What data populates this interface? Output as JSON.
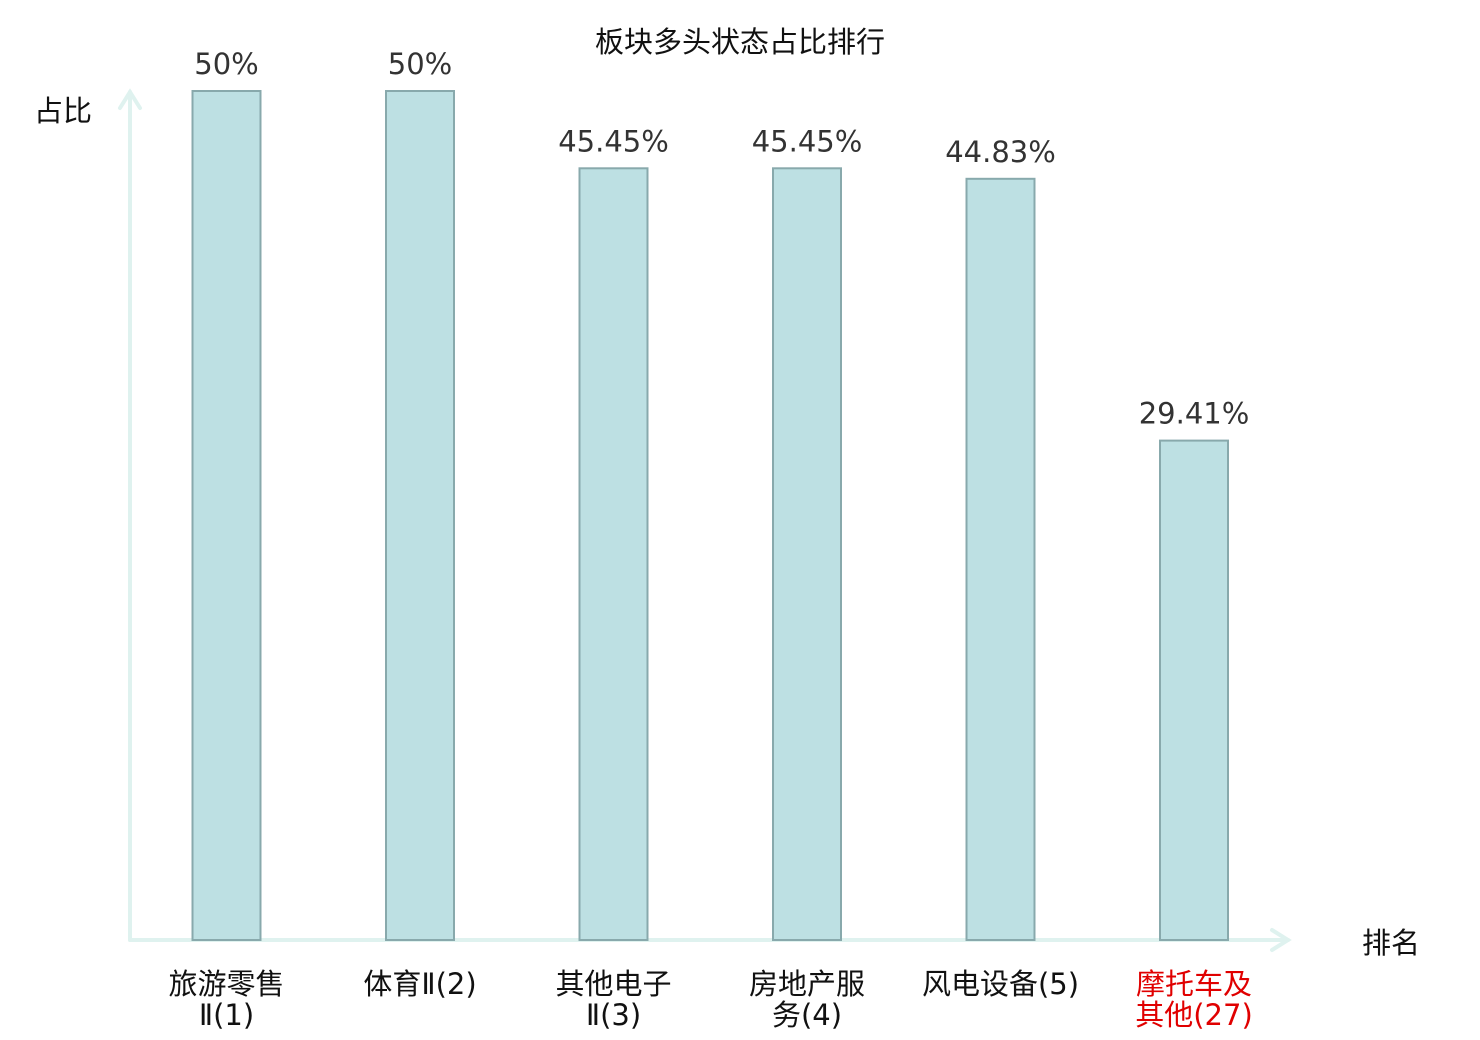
{
  "chart_data": {
    "type": "bar",
    "title": "板块多头状态占比排行",
    "xlabel": "排名",
    "ylabel": "占比",
    "ylim": [
      0,
      55
    ],
    "grid": false,
    "legend": "none",
    "categories": [
      [
        "旅游零售",
        "Ⅱ(1)"
      ],
      [
        "体育Ⅱ(2)"
      ],
      [
        "其他电子",
        "Ⅱ(3)"
      ],
      [
        "房地产服",
        "务(4)"
      ],
      [
        "风电设备(5)"
      ],
      [
        "摩托车及",
        "其他(27)"
      ]
    ],
    "values": [
      50,
      50,
      45.45,
      45.45,
      44.83,
      29.41
    ],
    "value_labels": [
      "50%",
      "50%",
      "45.45%",
      "45.45%",
      "44.83%",
      "29.41%"
    ],
    "highlight_index": 5,
    "colors": {
      "bar_fill": "#bde0e3",
      "bar_stroke": "#88a9ac",
      "axis": "#dff2ef",
      "label": "#111111",
      "value_label": "#333333",
      "highlight_label": "#e00000"
    }
  }
}
